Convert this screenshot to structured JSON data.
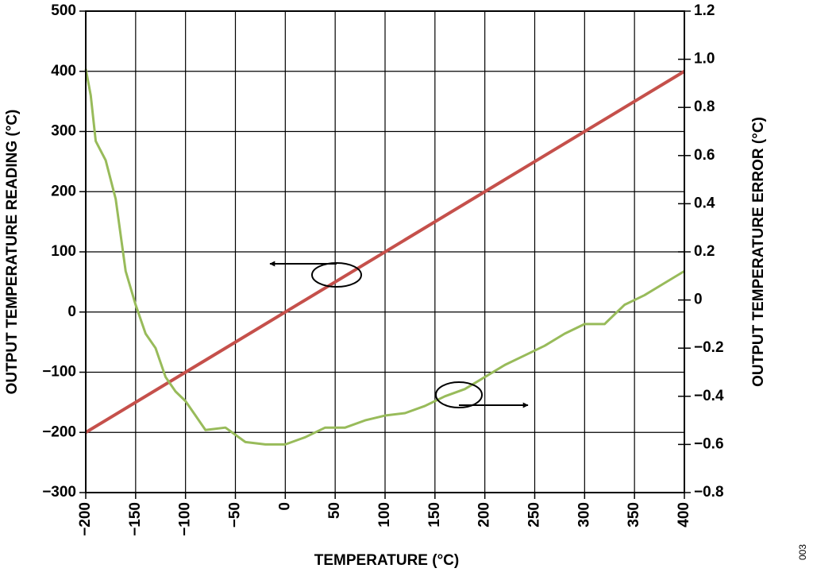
{
  "chart_data": {
    "type": "line",
    "xlabel": "TEMPERATURE (°C)",
    "ylabel": "OUTPUT TEMPERATURE READING (°C)",
    "y2label": "OUTPUT TEMPERATURE ERROR (°C)",
    "annotation": "003",
    "xlim": [
      -200,
      400
    ],
    "xticks": [
      {
        "value": -200,
        "label": "−200"
      },
      {
        "value": -150,
        "label": "−150"
      },
      {
        "value": -100,
        "label": "−100"
      },
      {
        "value": -50,
        "label": "−50"
      },
      0,
      50,
      100,
      150,
      200,
      250,
      300,
      350,
      400
    ],
    "ylim": [
      -300,
      500
    ],
    "yticks": [
      {
        "value": -300,
        "label": "−300"
      },
      {
        "value": -200,
        "label": "−200"
      },
      {
        "value": -100,
        "label": "−100"
      },
      0,
      100,
      200,
      300,
      400,
      500
    ],
    "y2lim": [
      -0.8,
      1.2
    ],
    "y2ticks": [
      {
        "value": -0.8,
        "label": "−0.8"
      },
      {
        "value": -0.6,
        "label": "−0.6"
      },
      {
        "value": -0.4,
        "label": "−0.4"
      },
      {
        "value": -0.2,
        "label": "−0.2"
      },
      0,
      0.2,
      0.4,
      0.6,
      0.8,
      {
        "value": 1.0,
        "label": "1.0"
      },
      1.2
    ],
    "grid": true,
    "series": [
      {
        "color": "#c5504b",
        "x": [
          -200,
          400
        ],
        "values": [
          -200,
          400
        ]
      },
      {
        "color": "#98bb5a",
        "axis": "y2",
        "x": [
          -200,
          -195,
          -190,
          -180,
          -170,
          -160,
          -150,
          -140,
          -130,
          -120,
          -110,
          -100,
          -90,
          -80,
          -60,
          -40,
          -20,
          0,
          20,
          40,
          60,
          80,
          100,
          120,
          140,
          160,
          180,
          200,
          220,
          240,
          260,
          280,
          300,
          320,
          340,
          360,
          380,
          400
        ],
        "values": [
          0.96,
          0.85,
          0.66,
          0.58,
          0.42,
          0.12,
          -0.02,
          -0.14,
          -0.2,
          -0.32,
          -0.38,
          -0.42,
          -0.48,
          -0.54,
          -0.53,
          -0.59,
          -0.6,
          -0.6,
          -0.57,
          -0.53,
          -0.53,
          -0.5,
          -0.48,
          -0.47,
          -0.44,
          -0.4,
          -0.37,
          -0.32,
          -0.27,
          -0.23,
          -0.19,
          -0.14,
          -0.1,
          -0.1,
          -0.02,
          0.02,
          0.07,
          0.12
        ]
      }
    ]
  }
}
